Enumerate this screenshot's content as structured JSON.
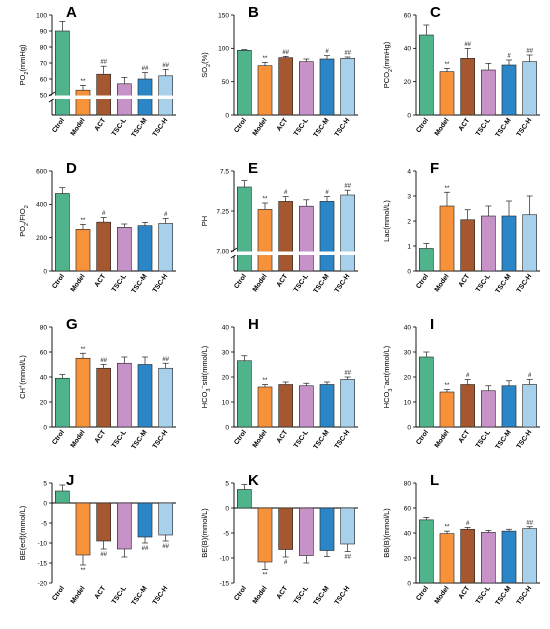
{
  "colors": {
    "Ctrol": "#4fb48c",
    "Model": "#f7923a",
    "ACT": "#a5582f",
    "TSC-L": "#c692c8",
    "TSC-M": "#2b86c7",
    "TSC-H": "#a7d1ea"
  },
  "chart_data": [
    {
      "label": "A",
      "type": "bar",
      "ylabel": "PO2(mmHg)",
      "broken_axis": true,
      "categories": [
        "Ctrol",
        "Model",
        "ACT",
        "TSC-L",
        "TSC-M",
        "TSC-H"
      ],
      "values": [
        90,
        53,
        63,
        57,
        60,
        62
      ],
      "errors": [
        6,
        3,
        5,
        4,
        4,
        4
      ],
      "sig": [
        "",
        "**",
        "##",
        "",
        "##",
        "##"
      ],
      "yticks": [
        50,
        60,
        70,
        80,
        90,
        100
      ],
      "ticklabels": [
        "50",
        "60",
        "70",
        "80",
        "90",
        "100"
      ]
    },
    {
      "label": "B",
      "type": "bar",
      "ylabel": "SO2(%)",
      "categories": [
        "Ctrol",
        "Model",
        "ACT",
        "TSC-L",
        "TSC-M",
        "TSC-H"
      ],
      "values": [
        97,
        74,
        86,
        80,
        84,
        85
      ],
      "errors": [
        1,
        5,
        2,
        4,
        5,
        2
      ],
      "sig": [
        "",
        "**",
        "##",
        "",
        "#",
        "##"
      ],
      "ylim": [
        0,
        150
      ],
      "yticks": [
        0,
        50,
        100,
        150
      ],
      "ticklabels": [
        "0",
        "50",
        "100",
        "150"
      ]
    },
    {
      "label": "C",
      "type": "bar",
      "ylabel": "PCO2(mmHg)",
      "categories": [
        "Ctrol",
        "Model",
        "ACT",
        "TSC-L",
        "TSC-M",
        "TSC-H"
      ],
      "values": [
        48,
        26,
        34,
        27,
        30,
        32
      ],
      "errors": [
        6,
        2,
        6,
        4,
        3,
        4
      ],
      "sig": [
        "",
        "**",
        "##",
        "",
        "#",
        "##"
      ],
      "ylim": [
        0,
        60
      ],
      "yticks": [
        0,
        20,
        40,
        60
      ],
      "ticklabels": [
        "0",
        "20",
        "40",
        "60"
      ]
    },
    {
      "label": "D",
      "type": "bar",
      "ylabel": "PO2/FIO2",
      "categories": [
        "Ctrol",
        "Model",
        "ACT",
        "TSC-L",
        "TSC-M",
        "TSC-H"
      ],
      "values": [
        465,
        250,
        293,
        262,
        272,
        285
      ],
      "errors": [
        35,
        30,
        28,
        20,
        20,
        30
      ],
      "sig": [
        "",
        "**",
        "#",
        "",
        "",
        "#"
      ],
      "ylim": [
        0,
        600
      ],
      "yticks": [
        0,
        200,
        400,
        600
      ],
      "ticklabels": [
        "0",
        "200",
        "400",
        "600"
      ]
    },
    {
      "label": "E",
      "type": "bar",
      "ylabel": "PH",
      "broken_axis": true,
      "categories": [
        "Ctrol",
        "Model",
        "ACT",
        "TSC-L",
        "TSC-M",
        "TSC-H"
      ],
      "values": [
        7.4,
        7.26,
        7.31,
        7.28,
        7.31,
        7.35
      ],
      "errors": [
        0.04,
        0.04,
        0.03,
        0.04,
        0.03,
        0.03
      ],
      "sig": [
        "",
        "**",
        "#",
        "",
        "#",
        "##"
      ],
      "yticks": [
        7.0,
        7.25,
        7.5
      ],
      "ticklabels": [
        "7.00",
        "7.25",
        "7.5"
      ]
    },
    {
      "label": "F",
      "type": "bar",
      "ylabel": "Lac(mmol/L)",
      "categories": [
        "Ctrol",
        "Model",
        "ACT",
        "TSC-L",
        "TSC-M",
        "TSC-H"
      ],
      "values": [
        0.9,
        2.6,
        2.05,
        2.2,
        2.2,
        2.25
      ],
      "errors": [
        0.2,
        0.55,
        0.4,
        0.4,
        0.6,
        0.75
      ],
      "sig": [
        "",
        "**",
        "",
        "",
        "",
        ""
      ],
      "ylim": [
        0,
        4
      ],
      "yticks": [
        0,
        1,
        2,
        3,
        4
      ],
      "ticklabels": [
        "0",
        "1",
        "2",
        "3",
        "4"
      ]
    },
    {
      "label": "G",
      "type": "bar",
      "ylabel": "CH+(mmol/L)",
      "categories": [
        "Ctrol",
        "Model",
        "ACT",
        "TSC-L",
        "TSC-M",
        "TSC-H"
      ],
      "values": [
        39,
        55,
        47,
        51,
        50,
        47
      ],
      "errors": [
        3,
        4,
        3,
        5,
        6,
        4
      ],
      "sig": [
        "",
        "**",
        "##",
        "",
        "",
        "##"
      ],
      "ylim": [
        0,
        80
      ],
      "yticks": [
        0,
        20,
        40,
        60,
        80
      ],
      "ticklabels": [
        "0",
        "20",
        "40",
        "60",
        "80"
      ]
    },
    {
      "label": "H",
      "type": "bar",
      "ylabel": "HCO3−std(mmol/L)",
      "categories": [
        "Ctrol",
        "Model",
        "ACT",
        "TSC-L",
        "TSC-M",
        "TSC-H"
      ],
      "values": [
        26.5,
        16,
        17,
        16.5,
        17,
        19
      ],
      "errors": [
        2,
        1,
        1,
        1,
        1,
        1
      ],
      "sig": [
        "",
        "**",
        "",
        "",
        "",
        "##"
      ],
      "ylim": [
        0,
        40
      ],
      "yticks": [
        0,
        10,
        20,
        30,
        40
      ],
      "ticklabels": [
        "0",
        "10",
        "20",
        "30",
        "40"
      ]
    },
    {
      "label": "I",
      "type": "bar",
      "ylabel": "HCO3−act(mmol/L)",
      "categories": [
        "Ctrol",
        "Model",
        "ACT",
        "TSC-L",
        "TSC-M",
        "TSC-H"
      ],
      "values": [
        28,
        14,
        17,
        14.5,
        16.5,
        17
      ],
      "errors": [
        2,
        1,
        2,
        2,
        2,
        2
      ],
      "sig": [
        "",
        "**",
        "#",
        "",
        "",
        "#"
      ],
      "ylim": [
        0,
        40
      ],
      "yticks": [
        0,
        10,
        20,
        30,
        40
      ],
      "ticklabels": [
        "0",
        "10",
        "20",
        "30",
        "40"
      ]
    },
    {
      "label": "J",
      "type": "bar",
      "ylabel": "BE(ecf)(mmol/L)",
      "categories": [
        "Ctrol",
        "Model",
        "ACT",
        "TSC-L",
        "TSC-M",
        "TSC-H"
      ],
      "values": [
        3,
        -13,
        -9.5,
        -11.5,
        -8.5,
        -8
      ],
      "errors": [
        1.5,
        2.5,
        2,
        2,
        1.5,
        1.5
      ],
      "sig": [
        "",
        "**",
        "##",
        "",
        "##",
        "##"
      ],
      "ylim": [
        -20,
        5
      ],
      "yticks": [
        -20,
        -15,
        -10,
        -5,
        0,
        5
      ],
      "ticklabels": [
        "-20",
        "-15",
        "-10",
        "-5",
        "0",
        "5"
      ]
    },
    {
      "label": "K",
      "type": "bar",
      "ylabel": "BE(B)(mmol/L)",
      "categories": [
        "Ctrol",
        "Model",
        "ACT",
        "TSC-L",
        "TSC-M",
        "TSC-H"
      ],
      "values": [
        3.7,
        -10.8,
        -8.3,
        -9.5,
        -8.5,
        -7.2
      ],
      "errors": [
        1,
        1.5,
        1.5,
        1.5,
        1.2,
        1.5
      ],
      "sig": [
        "",
        "**",
        "#",
        "",
        "",
        "##"
      ],
      "ylim": [
        -15,
        5
      ],
      "yticks": [
        -15,
        -10,
        -5,
        0,
        5
      ],
      "ticklabels": [
        "-15",
        "-10",
        "-5",
        "0",
        "5"
      ]
    },
    {
      "label": "L",
      "type": "bar",
      "ylabel": "BB(B)(mmol/L)",
      "categories": [
        "Ctrol",
        "Model",
        "ACT",
        "TSC-L",
        "TSC-M",
        "TSC-H"
      ],
      "values": [
        50.5,
        39.5,
        43,
        40.5,
        41.5,
        43.5
      ],
      "errors": [
        2,
        2,
        1.5,
        1.5,
        1.5,
        1.5
      ],
      "sig": [
        "",
        "**",
        "#",
        "",
        "",
        "##"
      ],
      "ylim": [
        0,
        80
      ],
      "yticks": [
        0,
        20,
        40,
        60,
        80
      ],
      "ticklabels": [
        "0",
        "20",
        "40",
        "60",
        "80"
      ]
    }
  ]
}
